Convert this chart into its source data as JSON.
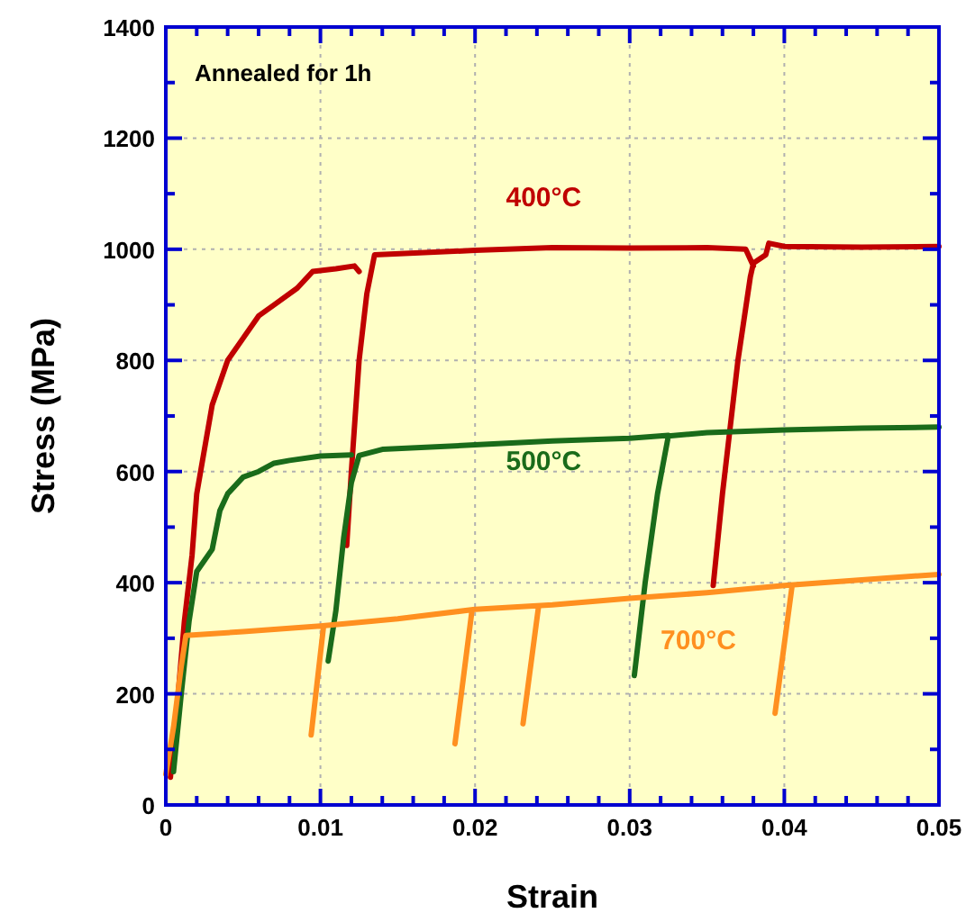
{
  "chart_data": {
    "type": "line",
    "xlabel": "Strain",
    "ylabel": "Stress (MPa)",
    "annotations": [
      "Annealed for 1h"
    ],
    "xlim": [
      0,
      0.05
    ],
    "ylim": [
      0,
      1400
    ],
    "xticks": [
      0,
      {
        "value": 0.002,
        "label": null
      },
      {
        "value": 0.004,
        "label": null
      },
      {
        "value": 0.006,
        "label": null
      },
      {
        "value": 0.008,
        "label": null
      },
      0.01,
      {
        "value": 0.012,
        "label": null
      },
      {
        "value": 0.014,
        "label": null
      },
      {
        "value": 0.016,
        "label": null
      },
      {
        "value": 0.018,
        "label": null
      },
      0.02,
      {
        "value": 0.022,
        "label": null
      },
      {
        "value": 0.024,
        "label": null
      },
      {
        "value": 0.026,
        "label": null
      },
      {
        "value": 0.028,
        "label": null
      },
      0.03,
      {
        "value": 0.032,
        "label": null
      },
      {
        "value": 0.034,
        "label": null
      },
      {
        "value": 0.036,
        "label": null
      },
      {
        "value": 0.038,
        "label": null
      },
      0.04,
      {
        "value": 0.042,
        "label": null
      },
      {
        "value": 0.044,
        "label": null
      },
      {
        "value": 0.046,
        "label": null
      },
      {
        "value": 0.048,
        "label": null
      },
      0.05
    ],
    "yticks": [
      0,
      {
        "value": 100,
        "label": null
      },
      200,
      {
        "value": 300,
        "label": null
      },
      400,
      {
        "value": 500,
        "label": null
      },
      600,
      {
        "value": 700,
        "label": null
      },
      800,
      {
        "value": 900,
        "label": null
      },
      1000,
      {
        "value": 1100,
        "label": null
      },
      1200,
      {
        "value": 1300,
        "label": null
      },
      1400
    ],
    "grid": true,
    "marker": "none",
    "line_style": "solid",
    "series": [
      {
        "name": "400°C",
        "color": "#c00000",
        "x": [
          0.0003,
          0.0008,
          0.0012,
          0.0017,
          0.002,
          0.0025,
          0.003,
          0.004,
          0.005,
          0.006,
          0.007,
          0.0085,
          0.0095,
          0.011,
          0.0122,
          0.0125,
          null,
          0.0117,
          0.012,
          0.0125,
          0.013,
          0.0135,
          0.02,
          0.025,
          0.03,
          0.035,
          0.0375,
          0.038,
          null,
          0.0354,
          0.036,
          0.037,
          0.0378,
          0.038,
          0.0388,
          0.039,
          0.04,
          0.045,
          0.05
        ],
        "values": [
          50,
          200,
          330,
          450,
          560,
          640,
          720,
          800,
          840,
          880,
          900,
          930,
          960,
          965,
          970,
          960,
          null,
          467,
          600,
          800,
          920,
          990,
          998,
          1003,
          1002,
          1003,
          1000,
          970,
          null,
          395,
          560,
          800,
          950,
          975,
          990,
          1011,
          1005,
          1004,
          1005
        ]
      },
      {
        "name": "500°C",
        "color": "#1a6b1a",
        "x": [
          0.0005,
          0.001,
          0.0015,
          0.002,
          0.003,
          0.0035,
          0.004,
          0.005,
          0.006,
          0.007,
          0.008,
          0.01,
          0.012,
          null,
          0.0105,
          0.011,
          0.0115,
          0.012,
          0.0125,
          0.014,
          0.02,
          0.025,
          0.03,
          0.0325,
          null,
          0.0303,
          0.031,
          0.0318,
          0.0325,
          0.035,
          0.04,
          0.045,
          0.05
        ],
        "values": [
          60,
          200,
          330,
          420,
          460,
          530,
          560,
          590,
          600,
          615,
          620,
          628,
          630,
          null,
          259,
          350,
          480,
          580,
          629,
          640,
          648,
          655,
          660,
          665,
          null,
          233,
          400,
          560,
          664,
          670,
          675,
          678,
          680
        ]
      },
      {
        "name": "700°C",
        "color": "#ff9020",
        "x": [
          0,
          0.0005,
          0.001,
          0.0013,
          0.005,
          0.01,
          0.015,
          0.02,
          0.025,
          0.03,
          0.035,
          0.04,
          0.045,
          0.05,
          null,
          0.0094,
          0.0102,
          null,
          0.0187,
          0.0198,
          null,
          0.0231,
          0.0241,
          null,
          0.0394,
          0.0405
        ],
        "values": [
          55,
          140,
          250,
          305,
          312,
          322,
          335,
          352,
          360,
          372,
          382,
          395,
          405,
          415,
          null,
          126,
          321,
          null,
          110,
          350,
          null,
          146,
          356,
          null,
          165,
          394
        ]
      }
    ]
  }
}
